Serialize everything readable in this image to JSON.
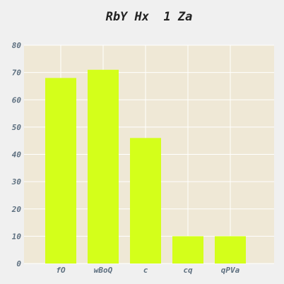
{
  "chart_data": {
    "type": "bar",
    "title": "RbY Hx  1 Za",
    "xlabel": "",
    "ylabel": "",
    "categories": [
      "fO",
      "wBoQ",
      "c",
      "cq",
      "qPVa"
    ],
    "values": [
      68,
      71,
      46,
      10,
      10
    ],
    "ylim": [
      0,
      80
    ],
    "yticks": [
      0,
      10,
      20,
      30,
      40,
      50,
      60,
      70,
      80
    ],
    "grid": true,
    "legend": "none",
    "colors": {
      "bar": "#d4ff1a",
      "plot_background": "#efe8d6",
      "grid": "#ffffff",
      "page_background": "#f0f0f0",
      "tick_label": "#5e7080",
      "title": "#222222"
    }
  }
}
